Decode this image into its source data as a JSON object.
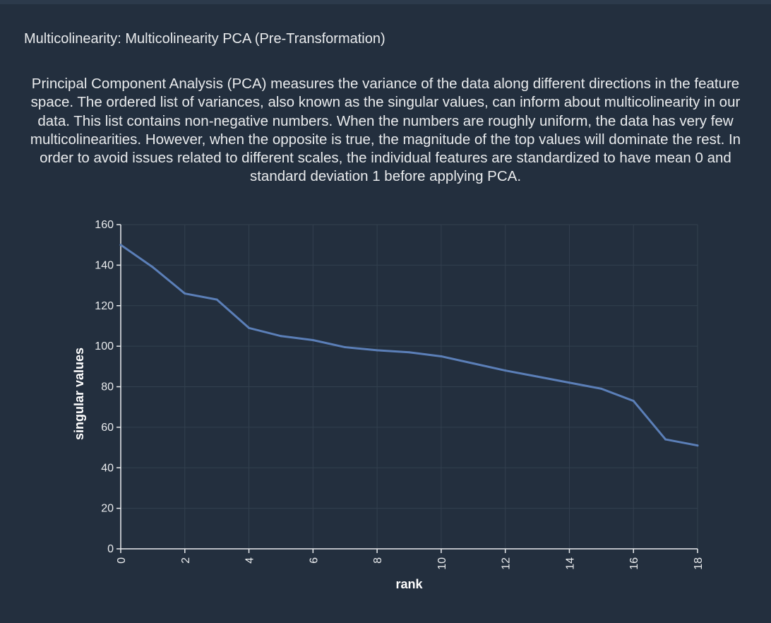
{
  "panel": {
    "title": "Multicolinearity: Multicolinearity PCA (Pre-Transformation)",
    "description": "Principal Component Analysis (PCA) measures the variance of the data along different directions in the feature space. The ordered list of variances, also known as the singular values, can inform about multicolinearity in our data. This list contains non-negative numbers. When the numbers are roughly uniform, the data has very few multicolinearities. However, when the opposite is true, the magnitude of the top values will dominate the rest. In order to avoid issues related to different scales, the individual features are standardized to have mean 0 and standard deviation 1 before applying PCA."
  },
  "colors": {
    "background": "#232f3e",
    "line": "#5b7fb8",
    "axis": "#e9ebed",
    "grid": "#33404f"
  },
  "chart_data": {
    "type": "line",
    "title": "",
    "xlabel": "rank",
    "ylabel": "singular values",
    "x": [
      0,
      1,
      2,
      3,
      4,
      5,
      6,
      7,
      8,
      9,
      10,
      11,
      12,
      13,
      14,
      15,
      16,
      17,
      18
    ],
    "series": [
      {
        "values": [
          150,
          139,
          126,
          123,
          109,
          105,
          103,
          99.5,
          98,
          97,
          95,
          91.5,
          88,
          85,
          82,
          79,
          73,
          54,
          51
        ]
      }
    ],
    "xlim": [
      0,
      18
    ],
    "ylim": [
      0,
      160
    ],
    "xticks": [
      0,
      2,
      4,
      6,
      8,
      10,
      12,
      14,
      16,
      18
    ],
    "yticks": [
      0,
      20,
      40,
      60,
      80,
      100,
      120,
      140,
      160
    ],
    "grid": true,
    "legend": "none"
  }
}
